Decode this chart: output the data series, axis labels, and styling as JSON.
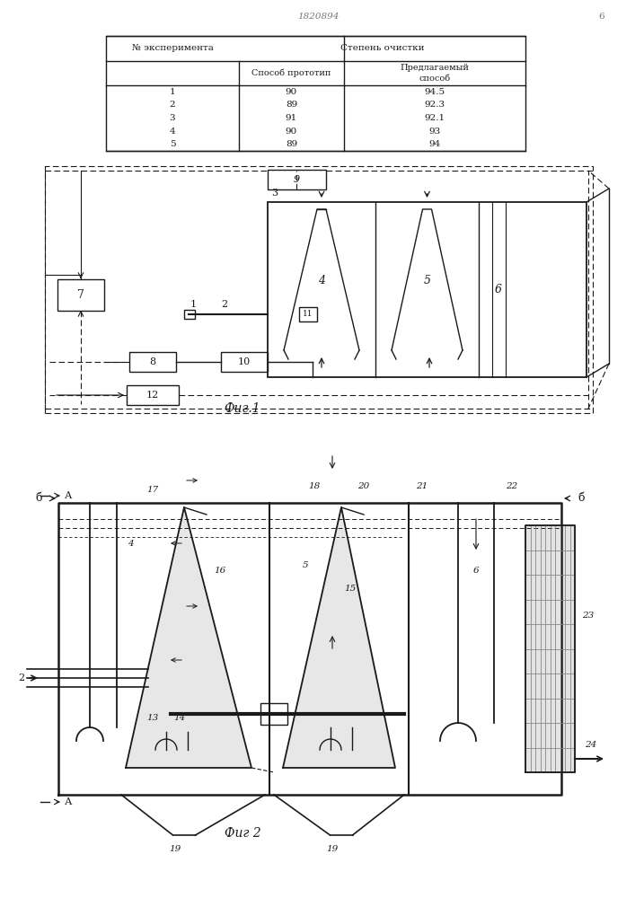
{
  "title_text": "1820894",
  "page_label": "6",
  "table": {
    "rows": [
      [
        "1",
        "90",
        "94.5"
      ],
      [
        "2",
        "89",
        "92.3"
      ],
      [
        "3",
        "91",
        "92.1"
      ],
      [
        "4",
        "90",
        "93"
      ],
      [
        "5",
        "89",
        "94"
      ]
    ]
  },
  "fig1_label": "Фиг.1",
  "fig2_label": "Фиг 2",
  "bg_color": "#ffffff",
  "line_color": "#1a1a1a",
  "gray_color": "#cccccc"
}
